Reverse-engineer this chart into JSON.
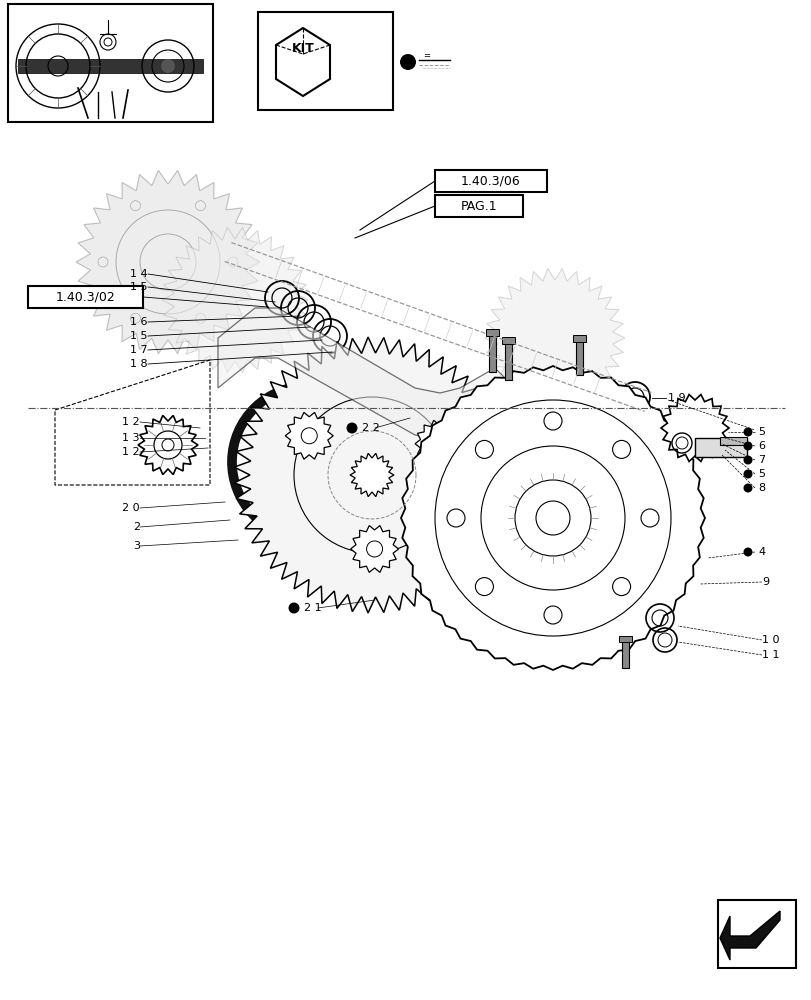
{
  "bg_color": "#ffffff",
  "line_color": "#000000",
  "light_gray": "#cccccc",
  "dark_gray": "#555555",
  "ref_box1": "1.40.3/06",
  "ref_box2": "PAG.1",
  "ref_box3": "1.40.3/02",
  "labels_left": [
    "14",
    "15",
    "1.40.3/02",
    "16",
    "15",
    "17",
    "18"
  ],
  "labels_right_upper": [
    "19",
    "5",
    "6",
    "7",
    "5",
    "8"
  ],
  "labels_lower_left": [
    "12",
    "13",
    "12",
    "20",
    "2",
    "3"
  ],
  "labels_lower_right": [
    "4",
    "9",
    "10",
    "11"
  ],
  "bullet_labels": [
    "22",
    "21"
  ],
  "nav_arrow_color": "#000000"
}
